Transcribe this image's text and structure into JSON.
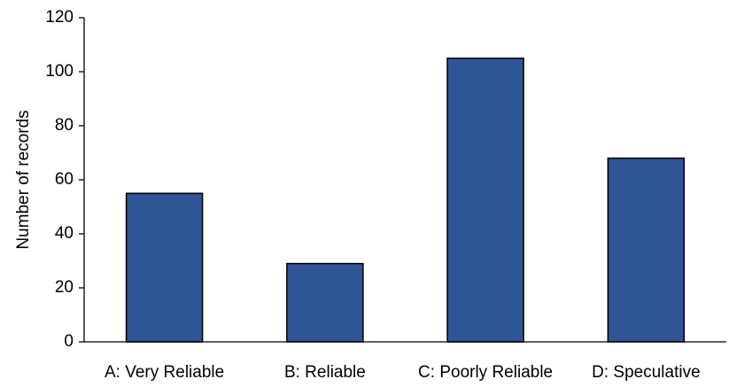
{
  "chart_data": {
    "type": "bar",
    "title": "",
    "xlabel": "",
    "ylabel": "Number of records",
    "categories": [
      "A: Very Reliable",
      "B: Reliable",
      "C: Poorly Reliable",
      "D: Speculative"
    ],
    "values": [
      55,
      29,
      105,
      68
    ],
    "ylim": [
      0,
      120
    ],
    "yticks": [
      "0",
      "20",
      "40",
      "60",
      "80",
      "100",
      "120"
    ],
    "grid": false,
    "legend": "none",
    "bar_color": "#2F5597",
    "bar_edge_color": "#000000"
  }
}
